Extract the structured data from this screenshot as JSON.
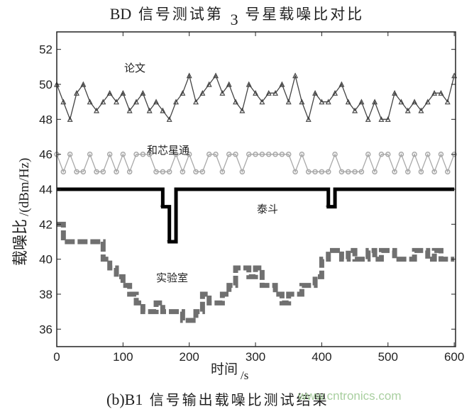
{
  "chart_data": {
    "type": "line",
    "title_prefix": "BD",
    "title_main": "信号测试第",
    "title_num": "3",
    "title_suffix": "号星载噪比对比",
    "caption_prefix": "(b)B1",
    "caption_main": "信号输出载噪比测试结果",
    "watermark": "www.cntronics.com",
    "xlabel": "时间",
    "xlabel_unit": "/s",
    "ylabel": "载噪比",
    "ylabel_unit": "/(dBm/Hz)",
    "xlim": [
      0,
      602
    ],
    "ylim": [
      35,
      53
    ],
    "xticks": [
      0,
      100,
      200,
      300,
      400,
      500,
      600
    ],
    "yticks": [
      36,
      38,
      40,
      42,
      44,
      46,
      48,
      50,
      52
    ],
    "grid": false,
    "x": [
      0,
      10,
      20,
      30,
      40,
      50,
      60,
      70,
      80,
      90,
      100,
      110,
      120,
      130,
      140,
      150,
      160,
      170,
      180,
      190,
      200,
      210,
      220,
      230,
      240,
      250,
      260,
      270,
      280,
      290,
      300,
      310,
      320,
      330,
      340,
      350,
      360,
      370,
      380,
      390,
      400,
      410,
      420,
      430,
      440,
      450,
      460,
      470,
      480,
      490,
      500,
      510,
      520,
      530,
      540,
      550,
      560,
      570,
      580,
      590,
      600
    ],
    "series": [
      {
        "name": "论文",
        "style": "stem-triangle",
        "color": "#444444",
        "values": [
          50,
          49,
          48,
          49.5,
          50,
          49,
          48.5,
          49,
          49.5,
          49,
          49.5,
          48.5,
          49,
          49.5,
          48.5,
          49,
          48.5,
          48,
          49,
          49.5,
          50.5,
          49,
          49.5,
          50,
          50.5,
          49.5,
          50,
          49,
          48.5,
          50,
          49.5,
          49,
          49.5,
          49.5,
          50,
          49,
          50.5,
          49,
          48,
          49.5,
          49,
          49,
          49.5,
          50,
          49,
          48.5,
          49,
          48,
          49,
          48,
          48,
          49.5,
          49,
          48.5,
          49,
          48.5,
          49,
          49.5,
          49.5,
          49,
          50.5
        ]
      },
      {
        "name": "和芯星通",
        "style": "stem-circle",
        "color": "#a8a8a8",
        "values": [
          46,
          45,
          46,
          45,
          45,
          46,
          45,
          45,
          46,
          45,
          46,
          45,
          46,
          46,
          46,
          45,
          45,
          45,
          46,
          45,
          46,
          45,
          45,
          46,
          46,
          45,
          46,
          46,
          45,
          46,
          46,
          46,
          46,
          46,
          46,
          46,
          45,
          46,
          45,
          45,
          45,
          45,
          46,
          45,
          45,
          45,
          45,
          46,
          45,
          46,
          46,
          45,
          46,
          45,
          46,
          45,
          46,
          45,
          46,
          45,
          46
        ]
      },
      {
        "name": "泰斗",
        "style": "step-thick",
        "color": "#000000",
        "values": [
          44,
          44,
          44,
          44,
          44,
          44,
          44,
          44,
          44,
          44,
          44,
          44,
          44,
          44,
          44,
          44,
          43,
          41,
          44,
          44,
          44,
          44,
          44,
          44,
          44,
          44,
          44,
          44,
          44,
          44,
          44,
          44,
          44,
          44,
          44,
          44,
          44,
          44,
          44,
          44,
          44,
          43,
          44,
          44,
          44,
          44,
          44,
          44,
          44,
          44,
          44,
          44,
          44,
          44,
          44,
          44,
          44,
          44,
          44,
          44,
          44
        ]
      },
      {
        "name": "实验室",
        "style": "step-block",
        "color": "#707070",
        "values": [
          42,
          41,
          41,
          41,
          41,
          41,
          41,
          40,
          39.5,
          39,
          38.5,
          38,
          37.5,
          37,
          37,
          37.5,
          37,
          37,
          37,
          36.5,
          36.5,
          37,
          38,
          37.5,
          37.5,
          38,
          38.5,
          39.5,
          39.5,
          39,
          39.5,
          38.5,
          38.5,
          38,
          37.5,
          38,
          38,
          38.5,
          38.5,
          39,
          40,
          40.5,
          40.5,
          40,
          40.5,
          40,
          40,
          40.5,
          40,
          40.5,
          40.5,
          40,
          40,
          40,
          40.5,
          40.5,
          40,
          40.5,
          40,
          40,
          40
        ]
      }
    ]
  }
}
